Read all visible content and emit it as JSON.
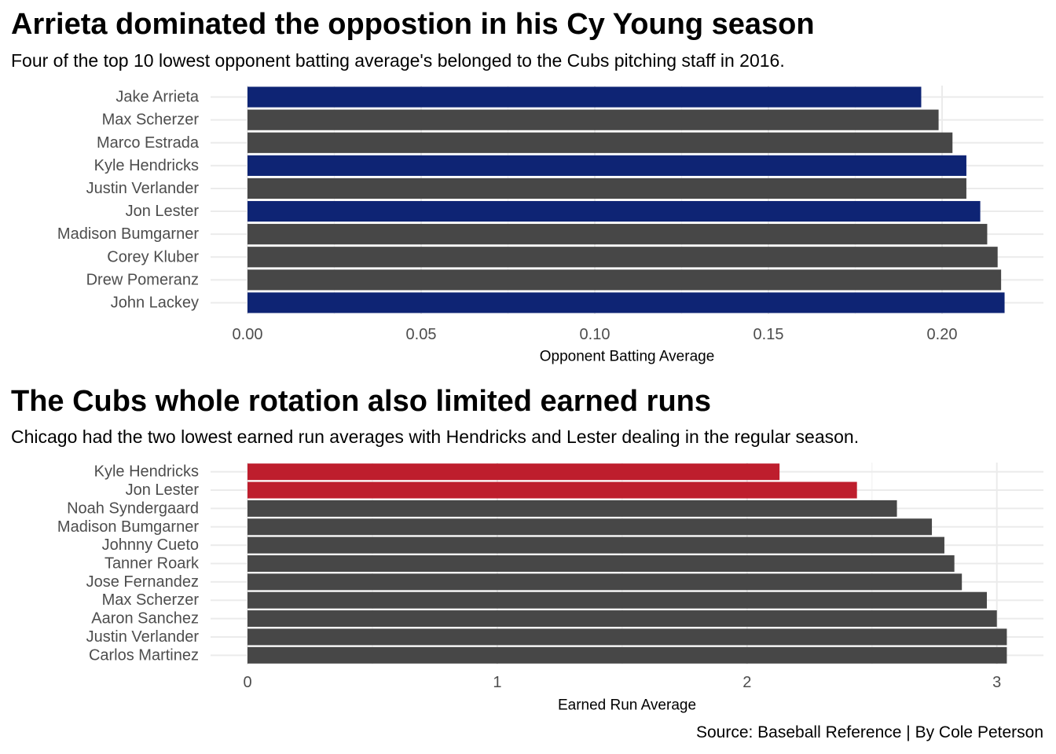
{
  "chart_data": [
    {
      "type": "bar",
      "orientation": "horizontal",
      "title": "Arrieta dominated the oppostion in his Cy Young season",
      "subtitle": "Four of the top 10 lowest opponent batting average's belonged to the Cubs pitching staff in 2016.",
      "xlabel": "Opponent Batting Average",
      "ylabel": "",
      "xlim": [
        0,
        0.22
      ],
      "ticks": [
        0.0,
        0.05,
        0.1,
        0.15,
        0.2
      ],
      "tick_labels": [
        "0.00",
        "0.05",
        "0.10",
        "0.15",
        "0.20"
      ],
      "grid": true,
      "categories": [
        "Jake Arrieta",
        "Max Scherzer",
        "Marco Estrada",
        "Kyle Hendricks",
        "Justin Verlander",
        "Jon Lester",
        "Madison Bumgarner",
        "Corey Kluber",
        "Drew Pomeranz",
        "John Lackey"
      ],
      "values": [
        0.194,
        0.199,
        0.203,
        0.207,
        0.207,
        0.211,
        0.213,
        0.216,
        0.217,
        0.218
      ],
      "highlight": [
        true,
        false,
        false,
        true,
        false,
        true,
        false,
        false,
        false,
        true
      ],
      "colors": {
        "highlight": "#0e2474",
        "default": "#474747"
      }
    },
    {
      "type": "bar",
      "orientation": "horizontal",
      "title": "The Cubs whole rotation also limited earned runs",
      "subtitle": "Chicago had the two lowest earned run averages with Hendricks and Lester dealing in the regular season.",
      "xlabel": "Earned Run Average",
      "ylabel": "",
      "xlim": [
        0,
        3.1
      ],
      "ticks": [
        0,
        1,
        2,
        3
      ],
      "tick_labels": [
        "0",
        "1",
        "2",
        "3"
      ],
      "grid": true,
      "categories": [
        "Kyle Hendricks",
        "Jon Lester",
        "Noah Syndergaard",
        "Madison Bumgarner",
        "Johnny Cueto",
        "Tanner Roark",
        "Jose Fernandez",
        "Max Scherzer",
        "Aaron Sanchez",
        "Justin Verlander",
        "Carlos Martinez"
      ],
      "values": [
        2.13,
        2.44,
        2.6,
        2.74,
        2.79,
        2.83,
        2.86,
        2.96,
        3.0,
        3.04,
        3.04
      ],
      "highlight": [
        true,
        true,
        false,
        false,
        false,
        false,
        false,
        false,
        false,
        false,
        false
      ],
      "colors": {
        "highlight": "#be1e2d",
        "default": "#474747"
      }
    }
  ],
  "caption": "Source: Baseball Reference | By Cole Peterson"
}
